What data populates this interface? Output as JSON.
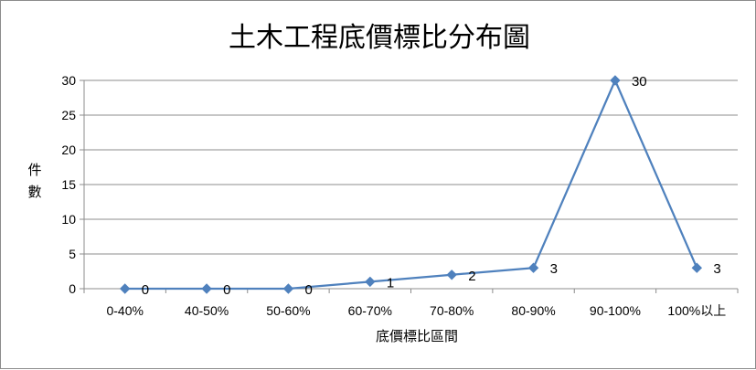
{
  "chart_data": {
    "type": "line",
    "title": "土木工程底價標比分布圖",
    "xlabel": "底價標比區間",
    "ylabel": "件數",
    "categories": [
      "0-40%",
      "40-50%",
      "50-60%",
      "60-70%",
      "70-80%",
      "80-90%",
      "90-100%",
      "100%以上"
    ],
    "values": [
      0,
      0,
      0,
      1,
      2,
      3,
      30,
      3
    ],
    "data_labels": [
      "0",
      "0",
      "0",
      "1",
      "2",
      "3",
      "30",
      "3"
    ],
    "ylim": [
      0,
      30
    ],
    "yticks": [
      "0",
      "5",
      "10",
      "15",
      "20",
      "25",
      "30"
    ],
    "grid": true,
    "legend": "none",
    "line_color": "#4F81BD",
    "marker": "diamond"
  }
}
